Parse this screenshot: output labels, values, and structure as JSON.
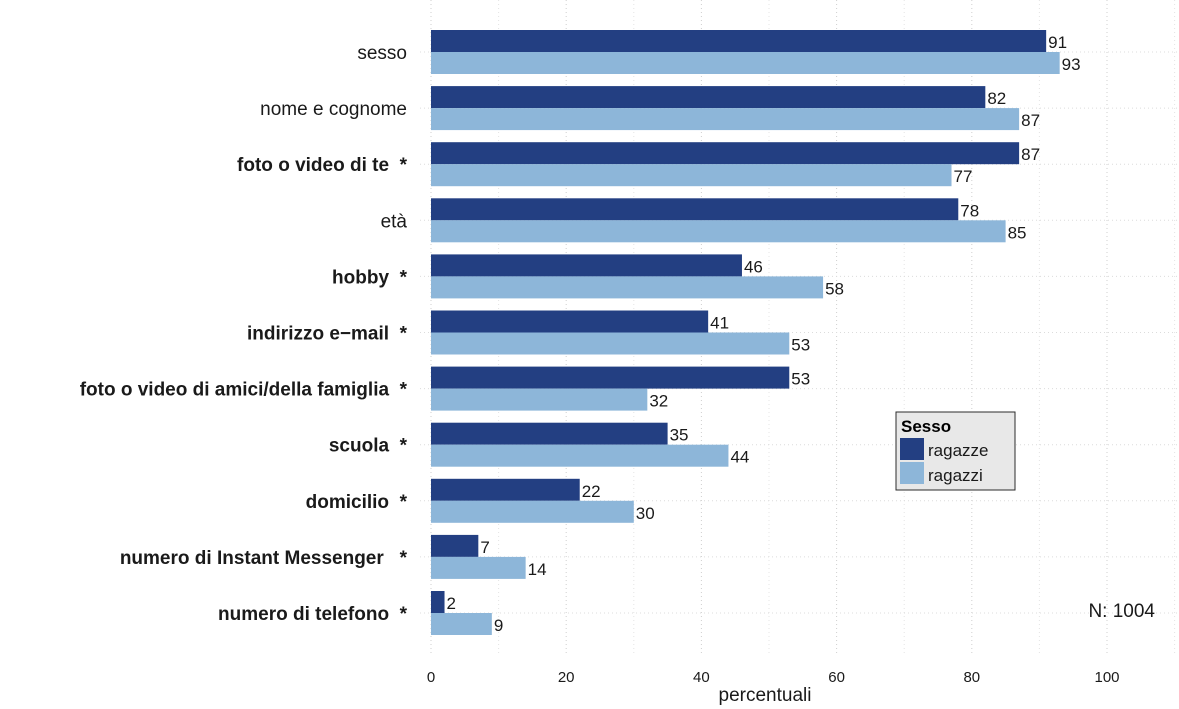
{
  "chart_data": {
    "type": "bar",
    "orientation": "horizontal",
    "categories": [
      {
        "label": "sesso",
        "bold": false
      },
      {
        "label": "nome e cognome",
        "bold": false
      },
      {
        "label": "foto o video di te  *",
        "bold": true
      },
      {
        "label": "età",
        "bold": false
      },
      {
        "label": "hobby  *",
        "bold": true
      },
      {
        "label": "indirizzo e−mail  *",
        "bold": true
      },
      {
        "label": "foto o video di amici/della famiglia  *",
        "bold": true
      },
      {
        "label": "scuola  *",
        "bold": true
      },
      {
        "label": "domicilio  *",
        "bold": true
      },
      {
        "label": "numero di Instant Messenger   *",
        "bold": true
      },
      {
        "label": "numero di telefono  *",
        "bold": true
      }
    ],
    "series": [
      {
        "name": "ragazze",
        "color": "#233f82",
        "values": [
          91,
          82,
          87,
          78,
          46,
          41,
          53,
          35,
          22,
          7,
          2
        ]
      },
      {
        "name": "ragazzi",
        "color": "#8db6d9",
        "values": [
          93,
          87,
          77,
          85,
          58,
          53,
          32,
          44,
          30,
          14,
          9
        ]
      }
    ],
    "xlabel": "percentuali",
    "xlim": [
      0,
      100
    ],
    "xticks": [
      0,
      20,
      40,
      60,
      80,
      100
    ],
    "grid": true,
    "legend": {
      "title": "Sesso",
      "placement": "right"
    },
    "annotation": "N: 1004"
  }
}
